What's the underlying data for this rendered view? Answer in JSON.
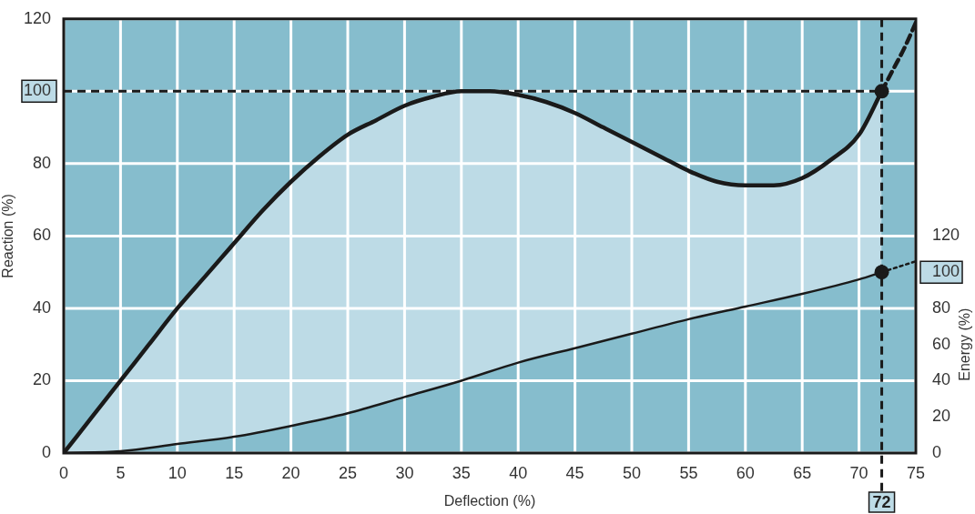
{
  "chart_data": {
    "type": "line",
    "xlabel": "Deflection (%)",
    "ylabel": "Reaction (%)",
    "y2label": "Energy (%)",
    "xlim": [
      0,
      75
    ],
    "xticks": [
      0,
      5,
      10,
      15,
      20,
      25,
      30,
      35,
      40,
      45,
      50,
      55,
      60,
      65,
      70,
      75
    ],
    "ylim": [
      0,
      120
    ],
    "yticks": [
      0,
      20,
      40,
      60,
      80,
      {
        "value": 100,
        "label": "100"
      },
      120
    ],
    "y2lim": [
      0,
      240
    ],
    "y2ticks": [
      0,
      20,
      40,
      60,
      80,
      {
        "value": 100,
        "label": "100"
      },
      120
    ],
    "grid": true,
    "marker": "none",
    "line_style": "solid",
    "series": [
      {
        "color": "#1a1a1a",
        "x": [
          0,
          2.5,
          5,
          7.5,
          10,
          12.5,
          15,
          17.5,
          20,
          22.5,
          25,
          27.5,
          30,
          32.5,
          35,
          37.5,
          40,
          42.5,
          45,
          47.5,
          50,
          52.5,
          55,
          57.5,
          60,
          62.5,
          65,
          67.5,
          70,
          72
        ],
        "values": [
          0,
          10,
          20,
          30,
          40,
          49,
          58,
          67,
          75,
          82,
          88,
          92,
          96,
          98.5,
          100,
          100,
          99,
          97,
          94,
          90,
          86,
          82,
          78,
          75,
          74,
          74,
          76,
          81,
          88,
          100
        ]
      },
      {
        "color": "#1a1a1a",
        "axis": "y2",
        "x": [
          0,
          5,
          10,
          15,
          20,
          25,
          30,
          35,
          40,
          45,
          50,
          55,
          60,
          65,
          70,
          72
        ],
        "values": [
          0,
          1,
          5,
          9,
          15,
          22,
          31,
          40,
          50,
          58,
          66,
          74,
          81,
          88,
          96,
          100
        ]
      },
      {
        "color": "#1a1a1a",
        "line_style": "dashed",
        "x": [
          72,
          73,
          74,
          75
        ],
        "values": [
          100,
          106,
          112,
          119
        ]
      },
      {
        "color": "#1a1a1a",
        "axis": "y2",
        "line_style": "dotted",
        "x": [
          72,
          75
        ],
        "values": [
          100,
          106
        ]
      },
      {
        "type": "scatter",
        "marker": "circle",
        "color": "#1a1a1a",
        "x": [
          72
        ],
        "values": [
          100
        ]
      },
      {
        "type": "scatter",
        "marker": "circle",
        "axis": "y2",
        "color": "#1a1a1a",
        "x": [
          72
        ],
        "values": [
          100
        ]
      }
    ],
    "ref_lines": [
      {
        "axis": "y",
        "value": 100,
        "line_style": "dashed",
        "color": "#1a1a1a"
      },
      {
        "axis": "x",
        "value": 72,
        "label": "72",
        "line_style": "dashed",
        "color": "#1a1a1a"
      }
    ]
  }
}
